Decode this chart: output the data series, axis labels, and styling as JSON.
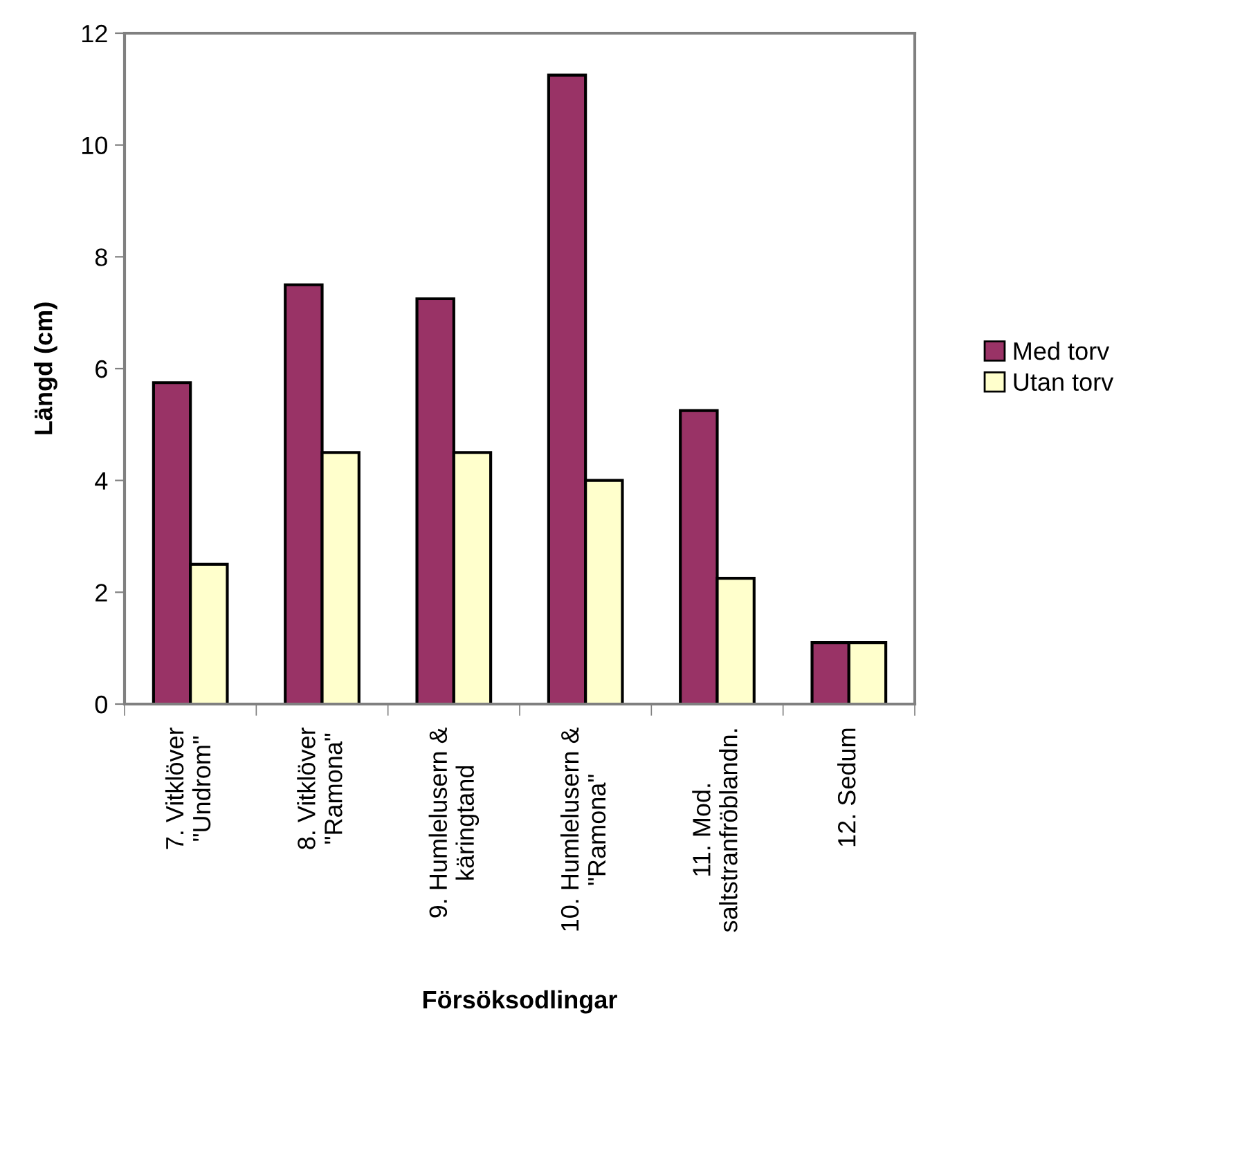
{
  "chart_data": {
    "type": "bar",
    "xlabel": "Försöksodlingar",
    "ylabel": "Längd (cm)",
    "categories": [
      "7. Vitklöver\n\"Undrom\"",
      "8. Vitklöver\n\"Ramona\"",
      "9. Humlelusern &\nkäringtand",
      "10. Humlelusern &\n\"Ramona\"",
      "11. Mod.\nsaltstranfröblandn.",
      "12. Sedum"
    ],
    "series": [
      {
        "name": "Med torv",
        "color": "#993366",
        "values": [
          5.75,
          7.5,
          7.25,
          11.25,
          5.25,
          1.1
        ]
      },
      {
        "name": "Utan torv",
        "color": "#ffffcc",
        "values": [
          2.5,
          4.5,
          4.5,
          4.0,
          2.25,
          1.1
        ]
      }
    ],
    "ylim": [
      0,
      12
    ],
    "yticks": [
      0,
      2,
      4,
      6,
      8,
      10,
      12
    ],
    "grid": false,
    "legend": "right"
  }
}
